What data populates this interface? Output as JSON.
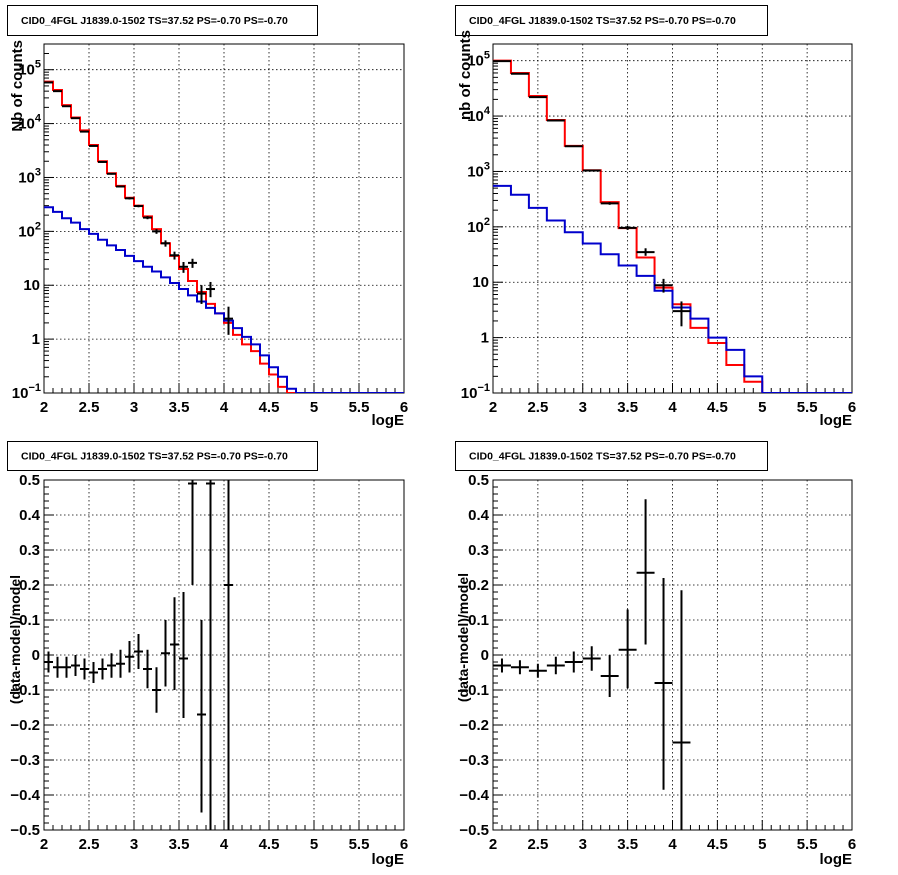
{
  "chart_data": [
    {
      "type": "line",
      "title": "CID0_4FGL J1839.0-1502 TS=37.52 PS=-0.70 PS=-0.70",
      "xlabel": "logE",
      "ylabel": "Nb of counts",
      "xlim": [
        2,
        6
      ],
      "ylim": [
        0.1,
        300000
      ],
      "ylog": true,
      "grid": true,
      "xticks": [
        "2",
        "2.5",
        "3",
        "3.5",
        "4",
        "4.5",
        "5",
        "5.5",
        "6"
      ],
      "yticks": [
        {
          "value": 0.1,
          "base": "10",
          "exp": "−1"
        },
        {
          "value": 1,
          "label": "1"
        },
        {
          "value": 10,
          "label": "10"
        },
        {
          "value": 100,
          "base": "10",
          "exp": "2"
        },
        {
          "value": 1000,
          "base": "10",
          "exp": "3"
        },
        {
          "value": 10000,
          "base": "10",
          "exp": "4"
        },
        {
          "value": 100000,
          "base": "10",
          "exp": "5"
        }
      ],
      "bin_edges": [
        2.0,
        2.1,
        2.2,
        2.3,
        2.4,
        2.5,
        2.6,
        2.7,
        2.8,
        2.9,
        3.0,
        3.1,
        3.2,
        3.3,
        3.4,
        3.5,
        3.6,
        3.7,
        3.8,
        3.9,
        4.0,
        4.1,
        4.2,
        4.3,
        4.4,
        4.5,
        4.6,
        4.7,
        4.8,
        4.9,
        5.0,
        5.1,
        5.2,
        5.3,
        5.4,
        5.5,
        5.6,
        5.7,
        5.8,
        5.9,
        6.0
      ],
      "series": [
        {
          "color": "#ff0000",
          "kind": "step",
          "values": [
            60000,
            42000,
            22000,
            13000,
            7500,
            4000,
            2000,
            1200,
            700,
            420,
            300,
            190,
            110,
            60,
            35,
            20,
            12,
            7.5,
            4.5,
            3.0,
            2.0,
            1.2,
            0.8,
            0.6,
            0.35,
            0.22,
            0.13,
            0.09,
            0.07,
            0.06,
            0.06,
            0.06,
            0.06,
            0.06,
            0.06,
            0.06,
            0.06,
            0.06,
            0.06,
            0.06
          ]
        },
        {
          "color": "#0000cc",
          "kind": "step",
          "values": [
            280,
            230,
            175,
            145,
            110,
            90,
            70,
            55,
            45,
            35,
            28,
            22,
            18,
            14,
            11,
            8.5,
            6.5,
            5.0,
            3.8,
            3.0,
            2.2,
            1.6,
            1.1,
            0.8,
            0.5,
            0.3,
            0.2,
            0.12,
            0.08,
            0.06,
            0.06,
            0.06,
            0.06,
            0.06,
            0.06,
            0.06,
            0.06,
            0.06,
            0.06,
            0.06
          ]
        },
        {
          "color": "#000000",
          "kind": "points",
          "points": [
            {
              "x": 2.05,
              "y": 58000,
              "ylo": 57500,
              "yhi": 58500
            },
            {
              "x": 2.15,
              "y": 40000,
              "ylo": 39600,
              "yhi": 40400
            },
            {
              "x": 2.25,
              "y": 21000,
              "ylo": 20700,
              "yhi": 21300
            },
            {
              "x": 2.35,
              "y": 12600,
              "ylo": 12400,
              "yhi": 12800
            },
            {
              "x": 2.45,
              "y": 7100,
              "ylo": 6950,
              "yhi": 7250
            },
            {
              "x": 2.55,
              "y": 3850,
              "ylo": 3750,
              "yhi": 3950
            },
            {
              "x": 2.65,
              "y": 1940,
              "ylo": 1880,
              "yhi": 2000
            },
            {
              "x": 2.75,
              "y": 1170,
              "ylo": 1130,
              "yhi": 1210
            },
            {
              "x": 2.85,
              "y": 680,
              "ylo": 655,
              "yhi": 705
            },
            {
              "x": 2.95,
              "y": 410,
              "ylo": 390,
              "yhi": 430
            },
            {
              "x": 3.05,
              "y": 295,
              "ylo": 280,
              "yhi": 310
            },
            {
              "x": 3.15,
              "y": 180,
              "ylo": 168,
              "yhi": 192
            },
            {
              "x": 3.25,
              "y": 100,
              "ylo": 90,
              "yhi": 110
            },
            {
              "x": 3.35,
              "y": 60,
              "ylo": 52,
              "yhi": 68
            },
            {
              "x": 3.45,
              "y": 36,
              "ylo": 30,
              "yhi": 42
            },
            {
              "x": 3.55,
              "y": 22,
              "ylo": 17,
              "yhi": 27
            },
            {
              "x": 3.65,
              "y": 26,
              "ylo": 21,
              "yhi": 31
            },
            {
              "x": 3.75,
              "y": 7,
              "ylo": 4.5,
              "yhi": 10
            },
            {
              "x": 3.85,
              "y": 8.5,
              "ylo": 6,
              "yhi": 11.5
            },
            {
              "x": 4.05,
              "y": 2.4,
              "ylo": 1.2,
              "yhi": 4
            }
          ]
        }
      ]
    },
    {
      "type": "line",
      "title": "CID0_4FGL J1839.0-1502 TS=37.52 PS=-0.70 PS=-0.70",
      "xlabel": "logE",
      "ylabel": "nb of counts",
      "xlim": [
        2,
        6
      ],
      "ylim": [
        0.1,
        200000
      ],
      "ylog": true,
      "grid": true,
      "xticks": [
        "2",
        "2.5",
        "3",
        "3.5",
        "4",
        "4.5",
        "5",
        "5.5",
        "6"
      ],
      "yticks": [
        {
          "value": 0.1,
          "base": "10",
          "exp": "−1"
        },
        {
          "value": 1,
          "label": "1"
        },
        {
          "value": 10,
          "label": "10"
        },
        {
          "value": 100,
          "base": "10",
          "exp": "2"
        },
        {
          "value": 1000,
          "base": "10",
          "exp": "3"
        },
        {
          "value": 10000,
          "base": "10",
          "exp": "4"
        },
        {
          "value": 100000,
          "base": "10",
          "exp": "5"
        }
      ],
      "bin_edges": [
        2.0,
        2.2,
        2.4,
        2.6,
        2.8,
        3.0,
        3.2,
        3.4,
        3.6,
        3.8,
        4.0,
        4.2,
        4.4,
        4.6,
        4.8,
        5.0,
        5.2,
        5.4,
        5.6,
        5.8,
        6.0
      ],
      "series": [
        {
          "color": "#ff0000",
          "kind": "step",
          "values": [
            100000,
            60000,
            23000,
            8500,
            2900,
            1050,
            280,
            95,
            28,
            8,
            4,
            1.5,
            0.8,
            0.32,
            0.16,
            0.07,
            0.07,
            0.07,
            0.07,
            0.07
          ]
        },
        {
          "color": "#0000cc",
          "kind": "step",
          "values": [
            550,
            380,
            220,
            130,
            80,
            50,
            32,
            20,
            13,
            7,
            3.5,
            2.2,
            1.0,
            0.6,
            0.2,
            0.1,
            0.07,
            0.07,
            0.07,
            0.07
          ]
        },
        {
          "color": "#000000",
          "kind": "points",
          "points": [
            {
              "x": 2.1,
              "y": 98000,
              "ylo": 97500,
              "yhi": 98500
            },
            {
              "x": 2.3,
              "y": 58000,
              "ylo": 57500,
              "yhi": 58500
            },
            {
              "x": 2.5,
              "y": 22000,
              "ylo": 21700,
              "yhi": 22300
            },
            {
              "x": 2.7,
              "y": 8300,
              "ylo": 8150,
              "yhi": 8450
            },
            {
              "x": 2.9,
              "y": 2850,
              "ylo": 2780,
              "yhi": 2920
            },
            {
              "x": 3.1,
              "y": 1040,
              "ylo": 1000,
              "yhi": 1080
            },
            {
              "x": 3.3,
              "y": 265,
              "ylo": 250,
              "yhi": 280
            },
            {
              "x": 3.5,
              "y": 96,
              "ylo": 88,
              "yhi": 104
            },
            {
              "x": 3.7,
              "y": 35,
              "ylo": 30,
              "yhi": 41
            },
            {
              "x": 3.9,
              "y": 8.8,
              "ylo": 6.5,
              "yhi": 11.5
            },
            {
              "x": 4.1,
              "y": 3.0,
              "ylo": 1.6,
              "yhi": 4.5
            }
          ]
        }
      ]
    },
    {
      "type": "scatter",
      "title": "CID0_4FGL J1839.0-1502 TS=37.52 PS=-0.70 PS=-0.70",
      "xlabel": "logE",
      "ylabel": "(data-model)/model",
      "xlim": [
        2,
        6
      ],
      "ylim": [
        -0.5,
        0.5
      ],
      "ylog": false,
      "grid": true,
      "xticks": [
        "2",
        "2.5",
        "3",
        "3.5",
        "4",
        "4.5",
        "5",
        "5.5",
        "6"
      ],
      "yticks": [
        {
          "value": -0.5,
          "label": "−0.5"
        },
        {
          "value": -0.4,
          "label": "−0.4"
        },
        {
          "value": -0.3,
          "label": "−0.3"
        },
        {
          "value": -0.2,
          "label": "−0.2"
        },
        {
          "value": -0.1,
          "label": "−0.1"
        },
        {
          "value": 0,
          "label": "0"
        },
        {
          "value": 0.1,
          "label": "0.1"
        },
        {
          "value": 0.2,
          "label": "0.2"
        },
        {
          "value": 0.3,
          "label": "0.3"
        },
        {
          "value": 0.4,
          "label": "0.4"
        },
        {
          "value": 0.5,
          "label": "0.5"
        }
      ],
      "series": [
        {
          "color": "#000000",
          "kind": "points",
          "xerr": 0.05,
          "points": [
            {
              "x": 2.05,
              "y": -0.02,
              "ylo": -0.05,
              "yhi": 0.01
            },
            {
              "x": 2.15,
              "y": -0.035,
              "ylo": -0.065,
              "yhi": -0.005
            },
            {
              "x": 2.25,
              "y": -0.035,
              "ylo": -0.065,
              "yhi": -0.005
            },
            {
              "x": 2.35,
              "y": -0.03,
              "ylo": -0.06,
              "yhi": 0.0
            },
            {
              "x": 2.45,
              "y": -0.04,
              "ylo": -0.07,
              "yhi": -0.01
            },
            {
              "x": 2.55,
              "y": -0.05,
              "ylo": -0.08,
              "yhi": -0.02
            },
            {
              "x": 2.65,
              "y": -0.04,
              "ylo": -0.07,
              "yhi": -0.01
            },
            {
              "x": 2.75,
              "y": -0.03,
              "ylo": -0.065,
              "yhi": 0.005
            },
            {
              "x": 2.85,
              "y": -0.025,
              "ylo": -0.065,
              "yhi": 0.015
            },
            {
              "x": 2.95,
              "y": -0.005,
              "ylo": -0.05,
              "yhi": 0.04
            },
            {
              "x": 3.05,
              "y": 0.01,
              "ylo": -0.04,
              "yhi": 0.06
            },
            {
              "x": 3.15,
              "y": -0.04,
              "ylo": -0.095,
              "yhi": 0.015
            },
            {
              "x": 3.25,
              "y": -0.1,
              "ylo": -0.165,
              "yhi": -0.035
            },
            {
              "x": 3.35,
              "y": 0.005,
              "ylo": -0.09,
              "yhi": 0.1
            },
            {
              "x": 3.45,
              "y": 0.03,
              "ylo": -0.1,
              "yhi": 0.165
            },
            {
              "x": 3.55,
              "y": -0.01,
              "ylo": -0.18,
              "yhi": 0.18
            },
            {
              "x": 3.65,
              "y": 0.49,
              "ylo": 0.2,
              "yhi": 0.5
            },
            {
              "x": 3.75,
              "y": -0.17,
              "ylo": -0.45,
              "yhi": 0.1
            },
            {
              "x": 3.85,
              "y": 0.49,
              "ylo": -0.5,
              "yhi": 0.5
            },
            {
              "x": 4.05,
              "y": 0.2,
              "ylo": -0.5,
              "yhi": 0.5
            }
          ]
        }
      ]
    },
    {
      "type": "scatter",
      "title": "CID0_4FGL J1839.0-1502 TS=37.52 PS=-0.70 PS=-0.70",
      "xlabel": "logE",
      "ylabel": "(data-model)/model",
      "xlim": [
        2,
        6
      ],
      "ylim": [
        -0.5,
        0.5
      ],
      "ylog": false,
      "grid": true,
      "xticks": [
        "2",
        "2.5",
        "3",
        "3.5",
        "4",
        "4.5",
        "5",
        "5.5",
        "6"
      ],
      "yticks": [
        {
          "value": -0.5,
          "label": "−0.5"
        },
        {
          "value": -0.4,
          "label": "−0.4"
        },
        {
          "value": -0.3,
          "label": "−0.3"
        },
        {
          "value": -0.2,
          "label": "−0.2"
        },
        {
          "value": -0.1,
          "label": "−0.1"
        },
        {
          "value": 0,
          "label": "0"
        },
        {
          "value": 0.1,
          "label": "0.1"
        },
        {
          "value": 0.2,
          "label": "0.2"
        },
        {
          "value": 0.3,
          "label": "0.3"
        },
        {
          "value": 0.4,
          "label": "0.4"
        },
        {
          "value": 0.5,
          "label": "0.5"
        }
      ],
      "series": [
        {
          "color": "#000000",
          "kind": "points",
          "xerr": 0.1,
          "points": [
            {
              "x": 2.1,
              "y": -0.03,
              "ylo": -0.05,
              "yhi": -0.01
            },
            {
              "x": 2.3,
              "y": -0.035,
              "ylo": -0.055,
              "yhi": -0.015
            },
            {
              "x": 2.5,
              "y": -0.045,
              "ylo": -0.065,
              "yhi": -0.025
            },
            {
              "x": 2.7,
              "y": -0.03,
              "ylo": -0.055,
              "yhi": -0.005
            },
            {
              "x": 2.9,
              "y": -0.02,
              "ylo": -0.05,
              "yhi": 0.01
            },
            {
              "x": 3.1,
              "y": -0.01,
              "ylo": -0.045,
              "yhi": 0.025
            },
            {
              "x": 3.3,
              "y": -0.06,
              "ylo": -0.12,
              "yhi": 0.0
            },
            {
              "x": 3.5,
              "y": 0.015,
              "ylo": -0.095,
              "yhi": 0.13
            },
            {
              "x": 3.7,
              "y": 0.235,
              "ylo": 0.03,
              "yhi": 0.445
            },
            {
              "x": 3.9,
              "y": -0.08,
              "ylo": -0.385,
              "yhi": 0.22
            },
            {
              "x": 4.1,
              "y": -0.25,
              "ylo": -0.5,
              "yhi": 0.185
            }
          ]
        }
      ]
    }
  ]
}
